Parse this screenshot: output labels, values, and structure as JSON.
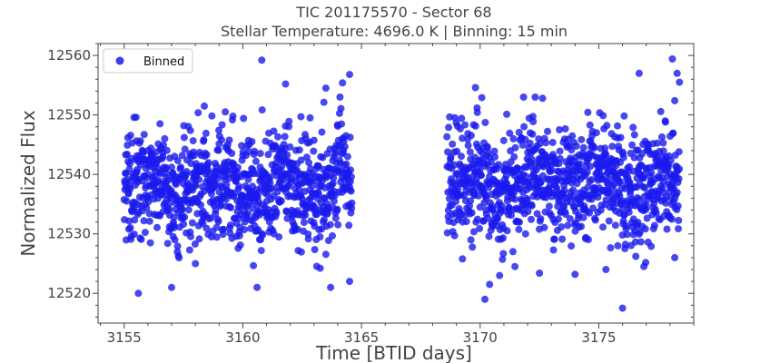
{
  "chart_data": {
    "type": "scatter",
    "title": "TIC 201175570 - Sector 68",
    "subtitle": "Stellar Temperature: 4696.0 K | Binning: 15 min",
    "xlabel": "Time [BTID days]",
    "ylabel": "Normalized Flux",
    "xlim": [
      3153.9,
      3179.0
    ],
    "ylim": [
      12515.0,
      12562.0
    ],
    "x_ticks": [
      3155,
      3160,
      3165,
      3170,
      3175
    ],
    "y_ticks": [
      12520,
      12530,
      12540,
      12550,
      12560
    ],
    "legend": {
      "placement": "top-left",
      "entries": [
        "Binned"
      ]
    },
    "grid": false,
    "colors": {
      "points": "#1a1aee",
      "axes": "#444444"
    },
    "series": [
      {
        "name": "Binned",
        "segments": [
          {
            "x_start": 3155.0,
            "x_end": 3164.6,
            "center": 12538.0,
            "spread": 6.0
          },
          {
            "x_start": 3168.6,
            "x_end": 3178.4,
            "center": 12538.5,
            "spread": 6.0
          }
        ],
        "points": [
          [
            3157.0,
            12559.0
          ],
          [
            3160.8,
            12559.2
          ],
          [
            3164.5,
            12556.8
          ],
          [
            3161.8,
            12555.2
          ],
          [
            3163.5,
            12554.5
          ],
          [
            3164.2,
            12555.4
          ],
          [
            3169.8,
            12554.6
          ],
          [
            3176.7,
            12557.0
          ],
          [
            3178.1,
            12559.4
          ],
          [
            3178.3,
            12557.0
          ],
          [
            3178.4,
            12555.5
          ],
          [
            3155.6,
            12520.0
          ],
          [
            3158.0,
            12525.0
          ],
          [
            3164.5,
            12522.0
          ],
          [
            3163.7,
            12521.0
          ],
          [
            3170.2,
            12519.0
          ],
          [
            3176.0,
            12517.5
          ],
          [
            3160.6,
            12521.0
          ],
          [
            3170.4,
            12521.5
          ],
          [
            3157.0,
            12521.0
          ],
          [
            3178.2,
            12526.0
          ],
          [
            3172.5,
            12523.4
          ],
          [
            3174.0,
            12523.2
          ],
          [
            3175.3,
            12524.0
          ],
          [
            3175.8,
            12528.0
          ],
          [
            3176.9,
            12524.5
          ],
          [
            3178.2,
            12552.4
          ],
          [
            3177.8,
            12549.0
          ]
        ]
      }
    ]
  }
}
